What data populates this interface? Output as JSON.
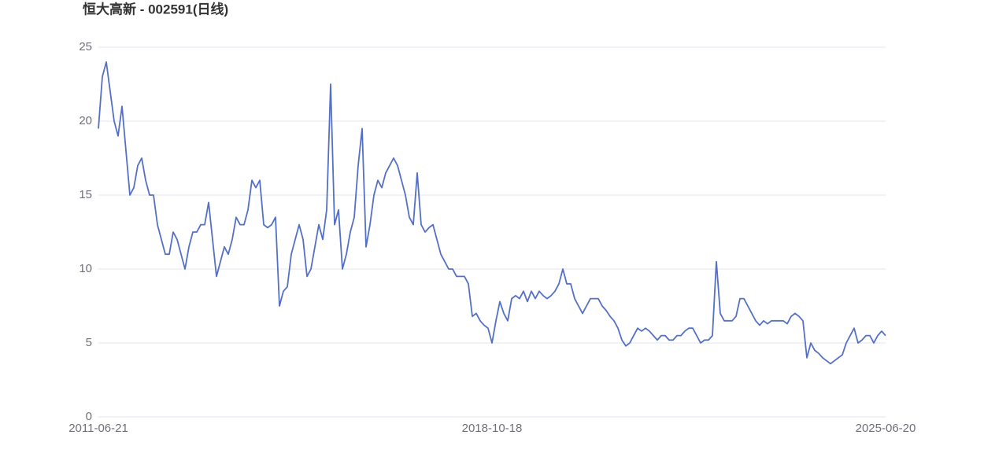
{
  "chart_data": {
    "type": "line",
    "title": "恒大高新 - 002591(日线)",
    "categories": [
      "2011-06-21",
      null,
      null,
      null,
      null,
      null,
      null,
      null,
      null,
      null,
      null,
      null,
      null,
      null,
      null,
      null,
      null,
      null,
      null,
      null,
      null,
      null,
      null,
      null,
      null,
      null,
      null,
      null,
      null,
      null,
      null,
      null,
      null,
      null,
      null,
      null,
      null,
      null,
      null,
      null,
      null,
      null,
      null,
      null,
      null,
      null,
      null,
      null,
      null,
      null,
      null,
      null,
      null,
      null,
      null,
      null,
      null,
      null,
      null,
      null,
      null,
      null,
      null,
      null,
      null,
      null,
      null,
      null,
      null,
      null,
      null,
      null,
      null,
      null,
      null,
      null,
      null,
      null,
      null,
      null,
      null,
      null,
      null,
      null,
      null,
      null,
      null,
      null,
      null,
      null,
      null,
      null,
      null,
      null,
      null,
      null,
      null,
      null,
      null,
      null,
      "2018-10-18",
      null,
      null,
      null,
      null,
      null,
      null,
      null,
      null,
      null,
      null,
      null,
      null,
      null,
      null,
      null,
      null,
      null,
      null,
      null,
      null,
      null,
      null,
      null,
      null,
      null,
      null,
      null,
      null,
      null,
      null,
      null,
      null,
      null,
      null,
      null,
      null,
      null,
      null,
      null,
      null,
      null,
      null,
      null,
      null,
      null,
      null,
      null,
      null,
      null,
      null,
      null,
      null,
      null,
      null,
      null,
      null,
      null,
      null,
      null,
      null,
      null,
      null,
      null,
      null,
      null,
      null,
      null,
      null,
      null,
      null,
      null,
      null,
      null,
      null,
      null,
      null,
      null,
      null,
      null,
      null,
      null,
      null,
      null,
      null,
      null,
      null,
      null,
      null,
      null,
      null,
      null,
      null,
      null,
      null,
      null,
      null,
      null,
      null,
      null,
      "2025-06-20"
    ],
    "series": [
      {
        "name": "002591",
        "color": "#5470c6",
        "values": [
          19.5,
          23,
          24,
          22,
          20,
          19,
          21,
          18,
          15,
          15.5,
          17,
          17.5,
          16,
          15,
          15,
          13,
          12,
          11,
          11,
          12.5,
          12,
          11,
          10,
          11.5,
          12.5,
          12.5,
          13,
          13,
          14.5,
          12,
          9.5,
          10.5,
          11.5,
          11,
          12,
          13.5,
          13,
          13,
          14,
          16,
          15.5,
          16,
          13,
          12.8,
          13,
          13.5,
          7.5,
          8.5,
          8.8,
          11,
          12,
          13,
          12,
          9.5,
          10,
          11.5,
          13,
          12,
          14,
          22.5,
          13,
          14,
          10,
          11,
          12.5,
          13.5,
          17,
          19.5,
          11.5,
          13,
          15,
          16,
          15.5,
          16.5,
          17,
          17.5,
          17,
          16,
          15,
          13.5,
          13,
          16.5,
          13,
          12.5,
          12.8,
          13,
          12,
          11,
          10.5,
          10,
          10,
          9.5,
          9.5,
          9.5,
          9,
          6.8,
          7,
          6.5,
          6.2,
          6,
          5,
          6.5,
          7.8,
          7,
          6.5,
          8,
          8.2,
          8,
          8.5,
          7.8,
          8.5,
          8,
          8.5,
          8.2,
          8,
          8.2,
          8.5,
          9,
          10,
          9,
          9,
          8,
          7.5,
          7,
          7.5,
          8,
          8,
          8,
          7.5,
          7.2,
          6.8,
          6.5,
          6,
          5.2,
          4.8,
          5,
          5.5,
          6,
          5.8,
          6,
          5.8,
          5.5,
          5.2,
          5.5,
          5.5,
          5.2,
          5.2,
          5.5,
          5.5,
          5.8,
          6,
          6,
          5.5,
          5,
          5.2,
          5.2,
          5.5,
          10.5,
          7,
          6.5,
          6.5,
          6.5,
          6.8,
          8,
          8,
          7.5,
          7,
          6.5,
          6.2,
          6.5,
          6.3,
          6.5,
          6.5,
          6.5,
          6.5,
          6.3,
          6.8,
          7,
          6.8,
          6.5,
          4,
          5,
          4.5,
          4.3,
          4,
          3.8,
          3.6,
          3.8,
          4,
          4.2,
          5,
          5.5,
          6,
          5,
          5.2,
          5.5,
          5.5,
          5,
          5.5,
          5.8,
          5.5
        ]
      }
    ],
    "ylim": [
      0,
      25
    ],
    "yticks": [
      0,
      5,
      10,
      15,
      20,
      25
    ],
    "grid": true
  }
}
